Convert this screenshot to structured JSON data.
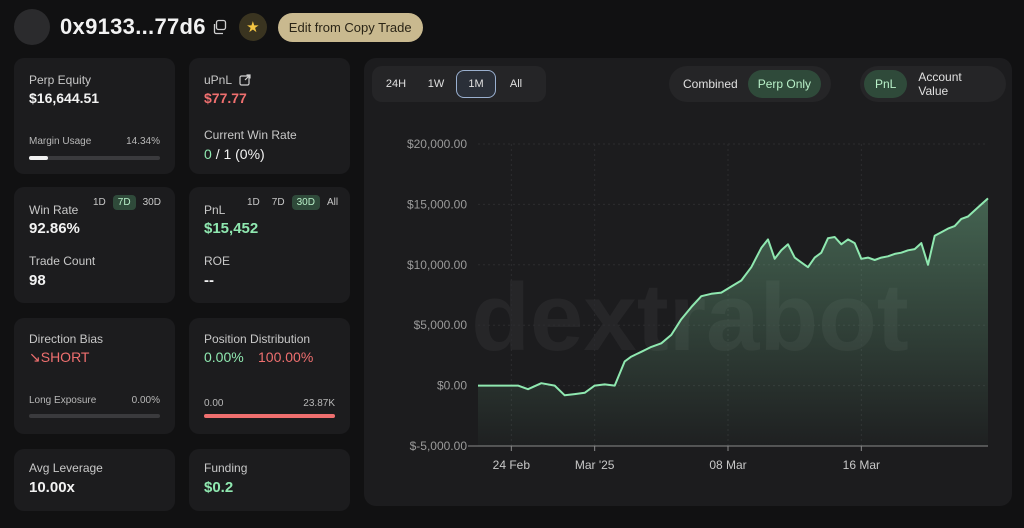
{
  "header": {
    "address": "0x9133...77d6",
    "edit_button": "Edit from Copy Trade",
    "icons": [
      "copy-icon",
      "star-icon"
    ]
  },
  "perp_equity": {
    "label": "Perp Equity",
    "value": "$16,644.51",
    "margin_label": "Margin Usage",
    "margin_pct": "14.34%",
    "margin_fraction": 0.1434
  },
  "upnl": {
    "label": "uPnL",
    "value": "$77.77",
    "win_rate_label": "Current Win Rate",
    "win_rate_wins": "0",
    "win_rate_rest": "/ 1 (0%)"
  },
  "win_rate": {
    "label": "Win Rate",
    "value": "92.86%",
    "periods": [
      "1D",
      "7D",
      "30D"
    ],
    "active_period": "7D",
    "trade_count_label": "Trade Count",
    "trade_count": "98"
  },
  "pnl_card": {
    "label": "PnL",
    "value": "$15,452",
    "periods": [
      "1D",
      "7D",
      "30D",
      "All"
    ],
    "active_period": "30D",
    "roe_label": "ROE",
    "roe_value": "--"
  },
  "direction": {
    "label": "Direction Bias",
    "value": "↘SHORT",
    "long_label": "Long Exposure",
    "long_pct": "0.00%",
    "long_fraction": 0
  },
  "position": {
    "label": "Position Distribution",
    "long_pct": "0.00%",
    "short_pct": "100.00%",
    "long_amount": "0.00",
    "short_amount": "23.87K",
    "short_fraction": 1
  },
  "leverage": {
    "label": "Avg Leverage",
    "value": "10.00x"
  },
  "funding": {
    "label": "Funding",
    "value": "$0.2"
  },
  "chart_controls": {
    "timeframes": [
      "24H",
      "1W",
      "1M",
      "All"
    ],
    "active_timeframe": "1M",
    "modes": [
      "Combined",
      "Perp Only"
    ],
    "active_mode": "Perp Only",
    "metrics": [
      "PnL",
      "Account Value"
    ],
    "active_metric": "PnL"
  },
  "watermark": "dextrabot",
  "colors": {
    "line": "#8fe8b0",
    "negative": "#ef6f6f",
    "accent_gold": "#c9b98f"
  },
  "chart_data": {
    "type": "area",
    "title": "",
    "xlabel": "",
    "ylabel": "",
    "ylim": [
      -5000,
      20000
    ],
    "yticks": [
      20000,
      15000,
      10000,
      5000,
      0,
      -5000
    ],
    "ytick_labels": [
      "$20,000.00",
      "$15,000.00",
      "$10,000.00",
      "$5,000.00",
      "$0.00",
      "$-5,000.00"
    ],
    "xticks": [
      {
        "x": 2,
        "label": "24 Feb"
      },
      {
        "x": 7,
        "label": "Mar '25"
      },
      {
        "x": 15,
        "label": "08 Mar"
      },
      {
        "x": 23,
        "label": "16 Mar"
      }
    ],
    "grid": true,
    "series": [
      {
        "x": [
          0,
          0.8,
          1.6,
          2.4,
          3.0,
          3.8,
          4.6,
          5.2,
          5.8,
          6.4,
          7.0,
          7.6,
          8.2,
          8.8,
          9.2,
          9.8,
          10.4,
          11.0,
          11.6,
          12.2,
          12.8,
          13.4,
          14.0,
          14.6,
          15.2,
          15.8,
          16.4,
          17.0,
          17.4,
          17.8,
          18.2,
          18.6,
          19.0,
          19.4,
          19.8,
          20.2,
          20.6,
          21.0,
          21.4,
          21.8,
          22.2,
          22.6,
          23.0,
          23.4,
          23.8,
          24.2,
          24.6,
          25.0,
          25.4,
          25.8,
          26.2,
          26.6,
          27.0,
          27.4,
          27.8,
          28.2,
          28.6,
          29.0,
          29.4,
          29.8,
          30.2,
          30.6
        ],
        "values": [
          0,
          0,
          0,
          0,
          -300,
          200,
          0,
          -800,
          -700,
          -600,
          0,
          100,
          0,
          2000,
          2400,
          2800,
          3200,
          3500,
          4200,
          5500,
          6500,
          7400,
          7600,
          7700,
          8200,
          8700,
          9800,
          11400,
          12100,
          10500,
          11200,
          11700,
          10600,
          10200,
          9800,
          10600,
          11000,
          12200,
          12300,
          11700,
          12100,
          11800,
          10500,
          10600,
          10400,
          10600,
          10700,
          10900,
          11000,
          11200,
          11300,
          11800,
          10000,
          12400,
          12700,
          13000,
          13200,
          13800,
          14000,
          14500,
          15000,
          15500
        ]
      }
    ]
  }
}
